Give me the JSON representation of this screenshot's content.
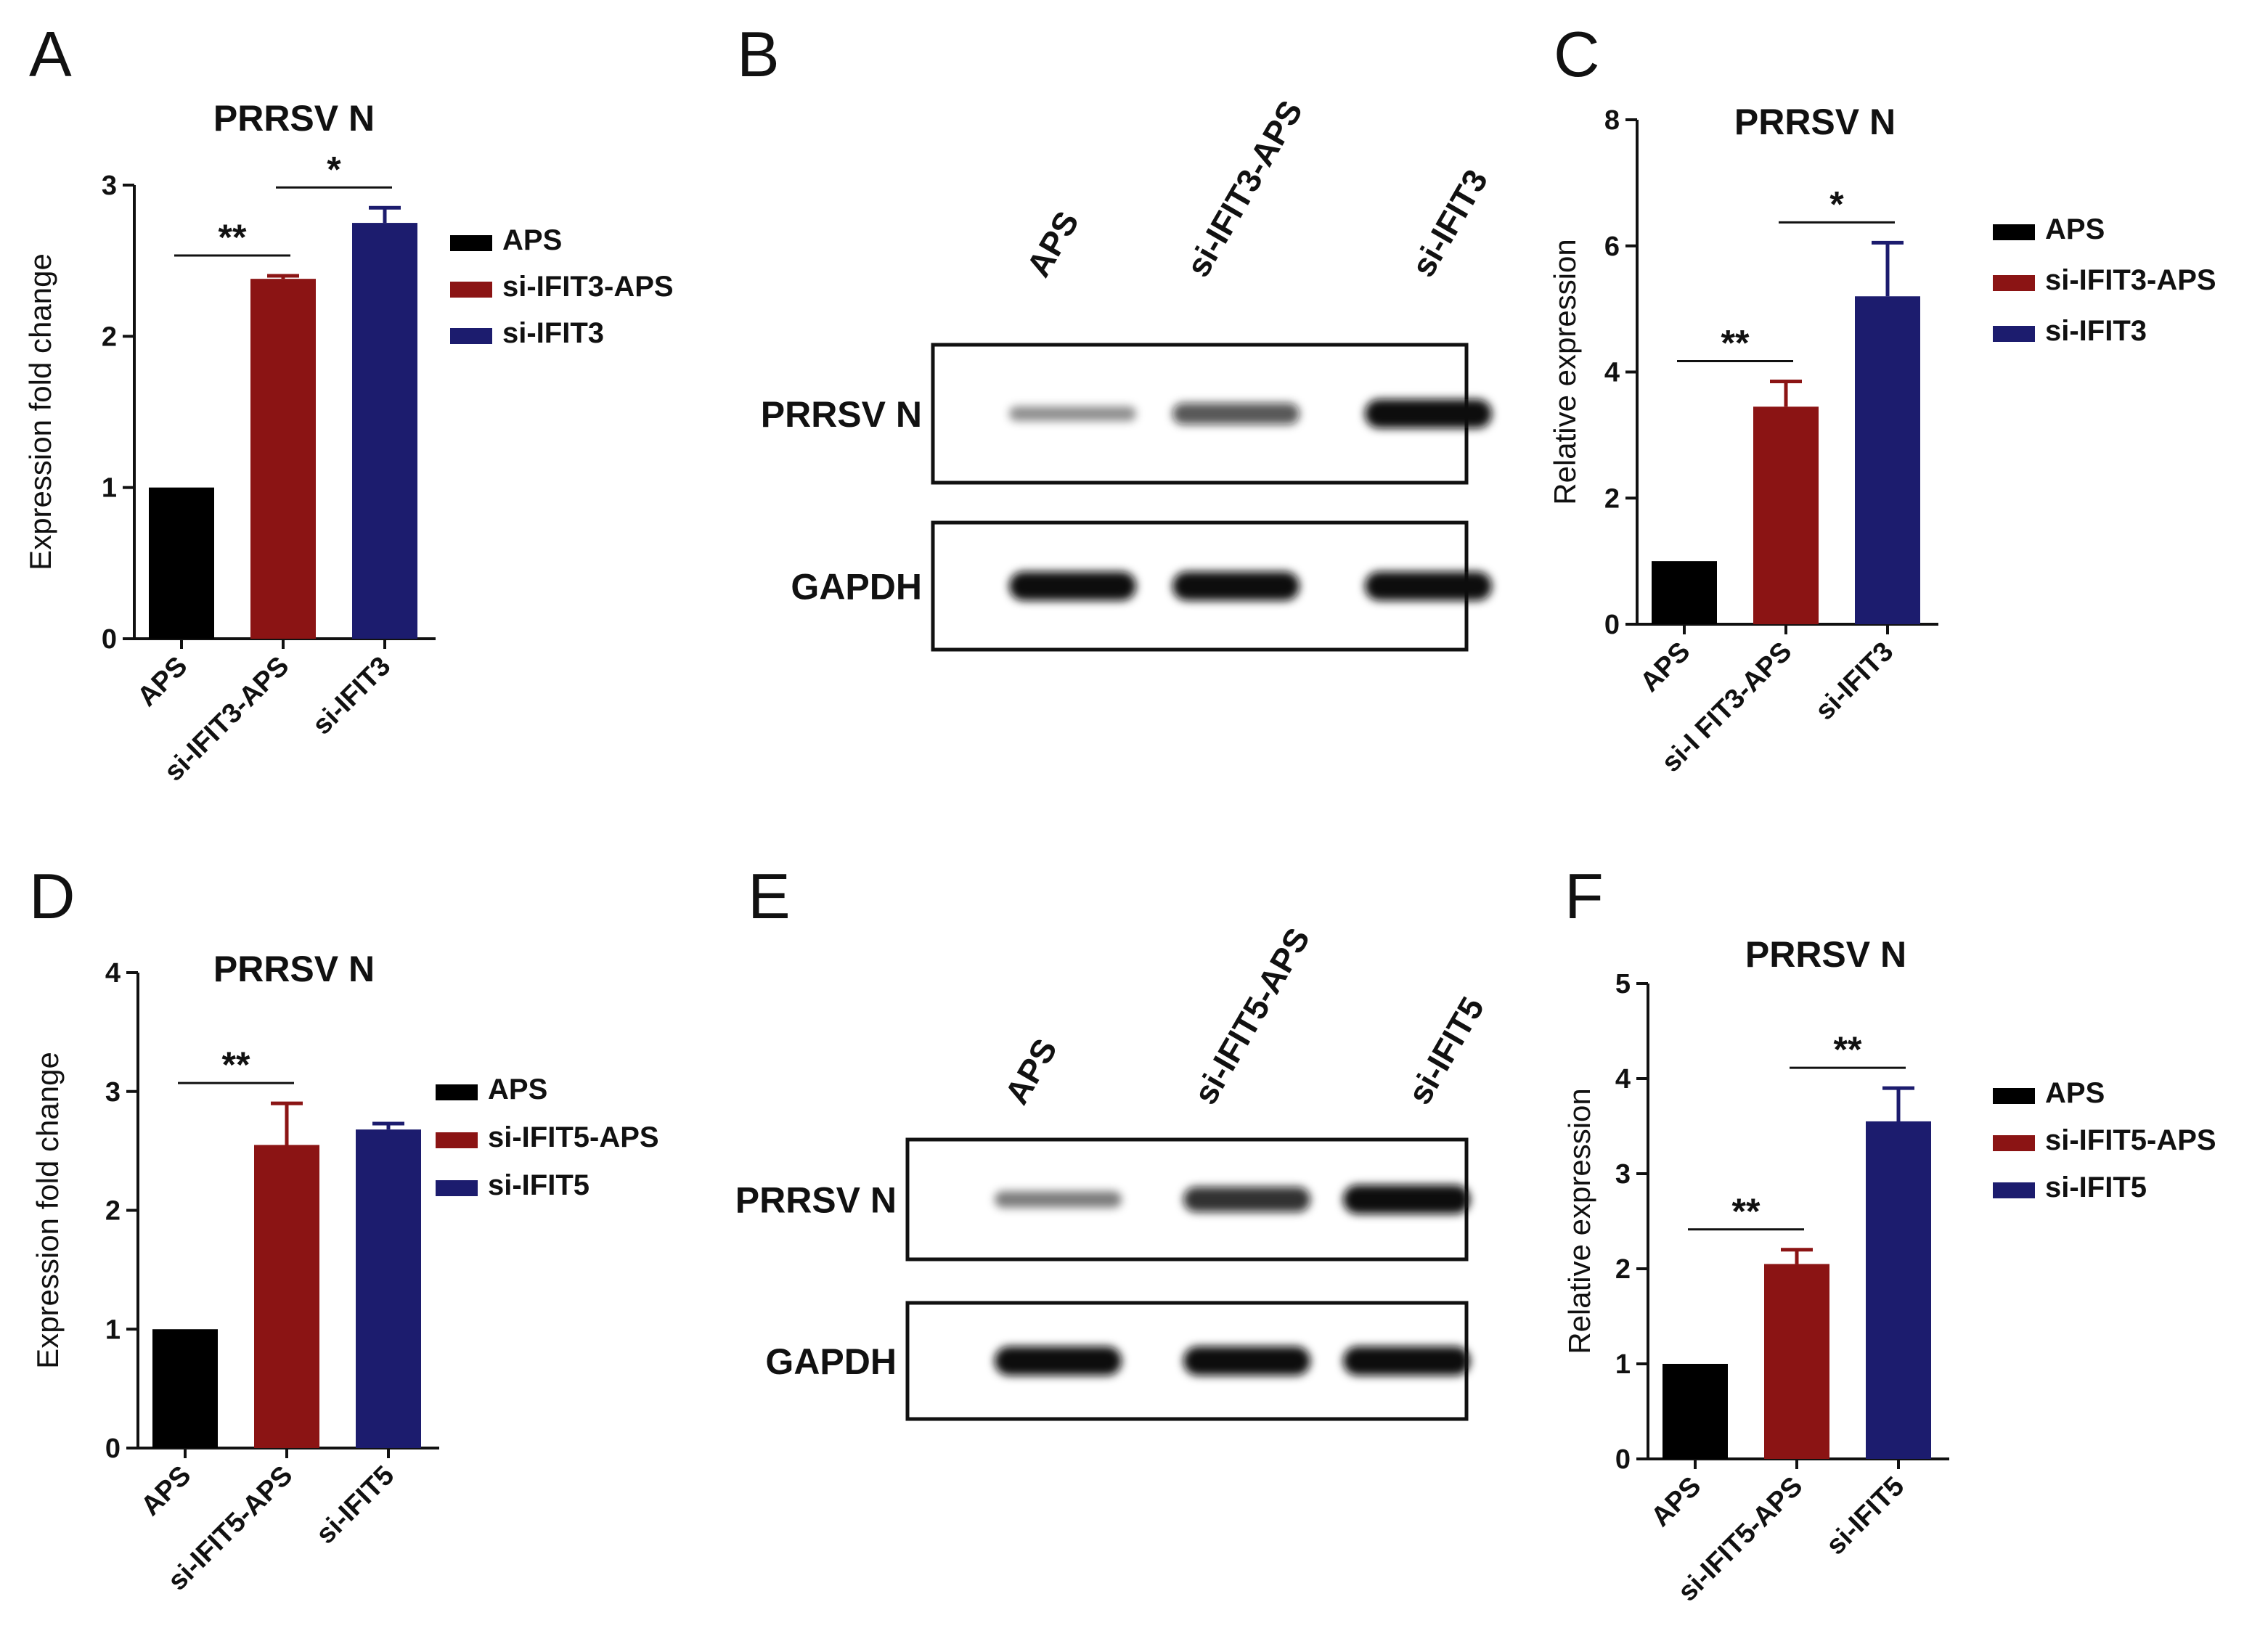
{
  "panels": {
    "a": {
      "letter": "A"
    },
    "b": {
      "letter": "B"
    },
    "c": {
      "letter": "C"
    },
    "d": {
      "letter": "D"
    },
    "e": {
      "letter": "E"
    },
    "f": {
      "letter": "F"
    }
  },
  "colors": {
    "aps": "#000000",
    "si_aps": "#8b1414",
    "si": "#1c1c6e"
  },
  "chart_data": [
    {
      "id": "A",
      "type": "bar",
      "title": "PRRSV N",
      "ylabel": "Expression fold change",
      "categories": [
        "APS",
        "si-IFIT3-APS",
        "si-IFIT3"
      ],
      "values": [
        1.0,
        2.38,
        2.75
      ],
      "errors": [
        0,
        0.02,
        0.1
      ],
      "ylim": [
        0,
        3
      ],
      "yticks": [
        0,
        1,
        2,
        3
      ],
      "legend": [
        "APS",
        "si-IFIT3-APS",
        "si-IFIT3"
      ],
      "legend_position": "right",
      "significance": [
        {
          "from": 0,
          "to": 1,
          "label": "**"
        },
        {
          "from": 1,
          "to": 2,
          "label": "*"
        }
      ]
    },
    {
      "id": "C",
      "type": "bar",
      "title": "PRRSV N",
      "ylabel": "Relative expression",
      "categories": [
        "APS",
        "si-I FIT3-APS",
        "si-IFIT3"
      ],
      "values": [
        1.0,
        3.45,
        5.2
      ],
      "errors": [
        0,
        0.4,
        0.85
      ],
      "ylim": [
        0,
        8
      ],
      "yticks": [
        0,
        2,
        4,
        6,
        8
      ],
      "legend": [
        "APS",
        "si-IFIT3-APS",
        "si-IFIT3"
      ],
      "legend_position": "right",
      "significance": [
        {
          "from": 0,
          "to": 1,
          "label": "**"
        },
        {
          "from": 1,
          "to": 2,
          "label": "*"
        }
      ]
    },
    {
      "id": "D",
      "type": "bar",
      "title": "PRRSV N",
      "ylabel": "Expression fold change",
      "categories": [
        "APS",
        "si-IFIT5-APS",
        "si-IFIT5"
      ],
      "values": [
        1.0,
        2.55,
        2.68
      ],
      "errors": [
        0,
        0.35,
        0.05
      ],
      "ylim": [
        0,
        4
      ],
      "yticks": [
        0,
        1,
        2,
        3,
        4
      ],
      "legend": [
        "APS",
        "si-IFIT5-APS",
        "si-IFIT5"
      ],
      "legend_position": "right",
      "significance": [
        {
          "from": 0,
          "to": 1,
          "label": "**"
        }
      ]
    },
    {
      "id": "F",
      "type": "bar",
      "title": "PRRSV N",
      "ylabel": "Relative expression",
      "categories": [
        "APS",
        "si-IFIT5-APS",
        "si-IFIT5"
      ],
      "values": [
        1.0,
        2.05,
        3.55
      ],
      "errors": [
        0,
        0.15,
        0.35
      ],
      "ylim": [
        0,
        5
      ],
      "yticks": [
        0,
        1,
        2,
        3,
        4,
        5
      ],
      "legend": [
        "APS",
        "si-IFIT5-APS",
        "si-IFIT5"
      ],
      "legend_position": "right",
      "significance": [
        {
          "from": 0,
          "to": 1,
          "label": "**"
        },
        {
          "from": 1,
          "to": 2,
          "label": "**"
        }
      ]
    }
  ],
  "blots": [
    {
      "id": "B",
      "lanes": [
        "APS",
        "si-IFIT3-APS",
        "si-IFIT3"
      ],
      "rows": [
        {
          "label": "PRRSV N",
          "intensity": [
            0.25,
            0.6,
            1.0
          ]
        },
        {
          "label": "GAPDH",
          "intensity": [
            1.0,
            1.0,
            1.0
          ]
        }
      ]
    },
    {
      "id": "E",
      "lanes": [
        "APS",
        "si-IFIT5-APS",
        "si-IFIT5"
      ],
      "rows": [
        {
          "label": "PRRSV N",
          "intensity": [
            0.35,
            0.8,
            1.0
          ]
        },
        {
          "label": "GAPDH",
          "intensity": [
            1.0,
            1.0,
            1.0
          ]
        }
      ]
    }
  ]
}
